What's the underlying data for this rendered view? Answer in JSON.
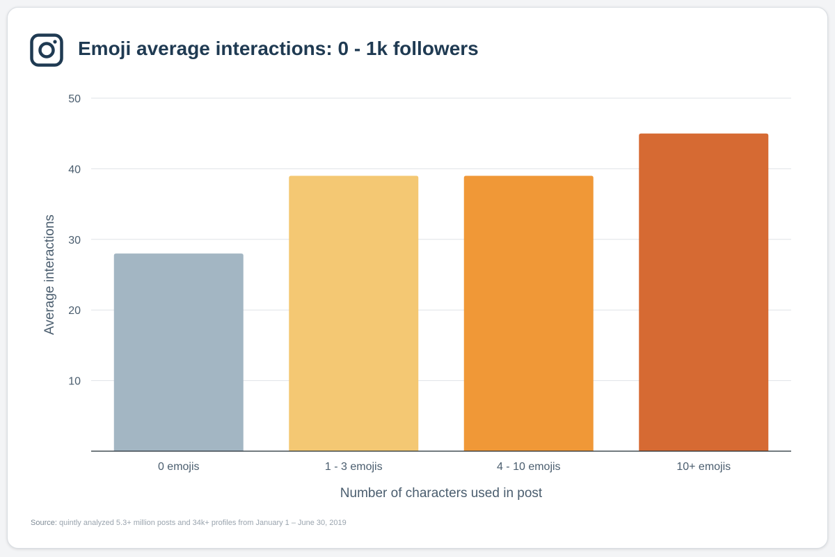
{
  "title": "Emoji average interactions: 0 - 1k followers",
  "logo_icon": "instagram-icon",
  "source_label": "Source:",
  "source_text": "quintly analyzed 5.3+ million posts and 34k+ profiles from January 1 – June 30, 2019",
  "chart_data": {
    "type": "bar",
    "categories": [
      "0 emojis",
      "1 - 3 emojis",
      "4 - 10 emojis",
      "10+ emojis"
    ],
    "values": [
      28,
      39,
      39,
      45
    ],
    "colors": [
      "#a3b6c3",
      "#f4c873",
      "#f09837",
      "#d66a33"
    ],
    "xlabel": "Number of characters used in post",
    "ylabel": "Average interactions",
    "ylim": [
      0,
      50
    ],
    "yticks": [
      10,
      20,
      30,
      40,
      50
    ],
    "grid": true
  }
}
